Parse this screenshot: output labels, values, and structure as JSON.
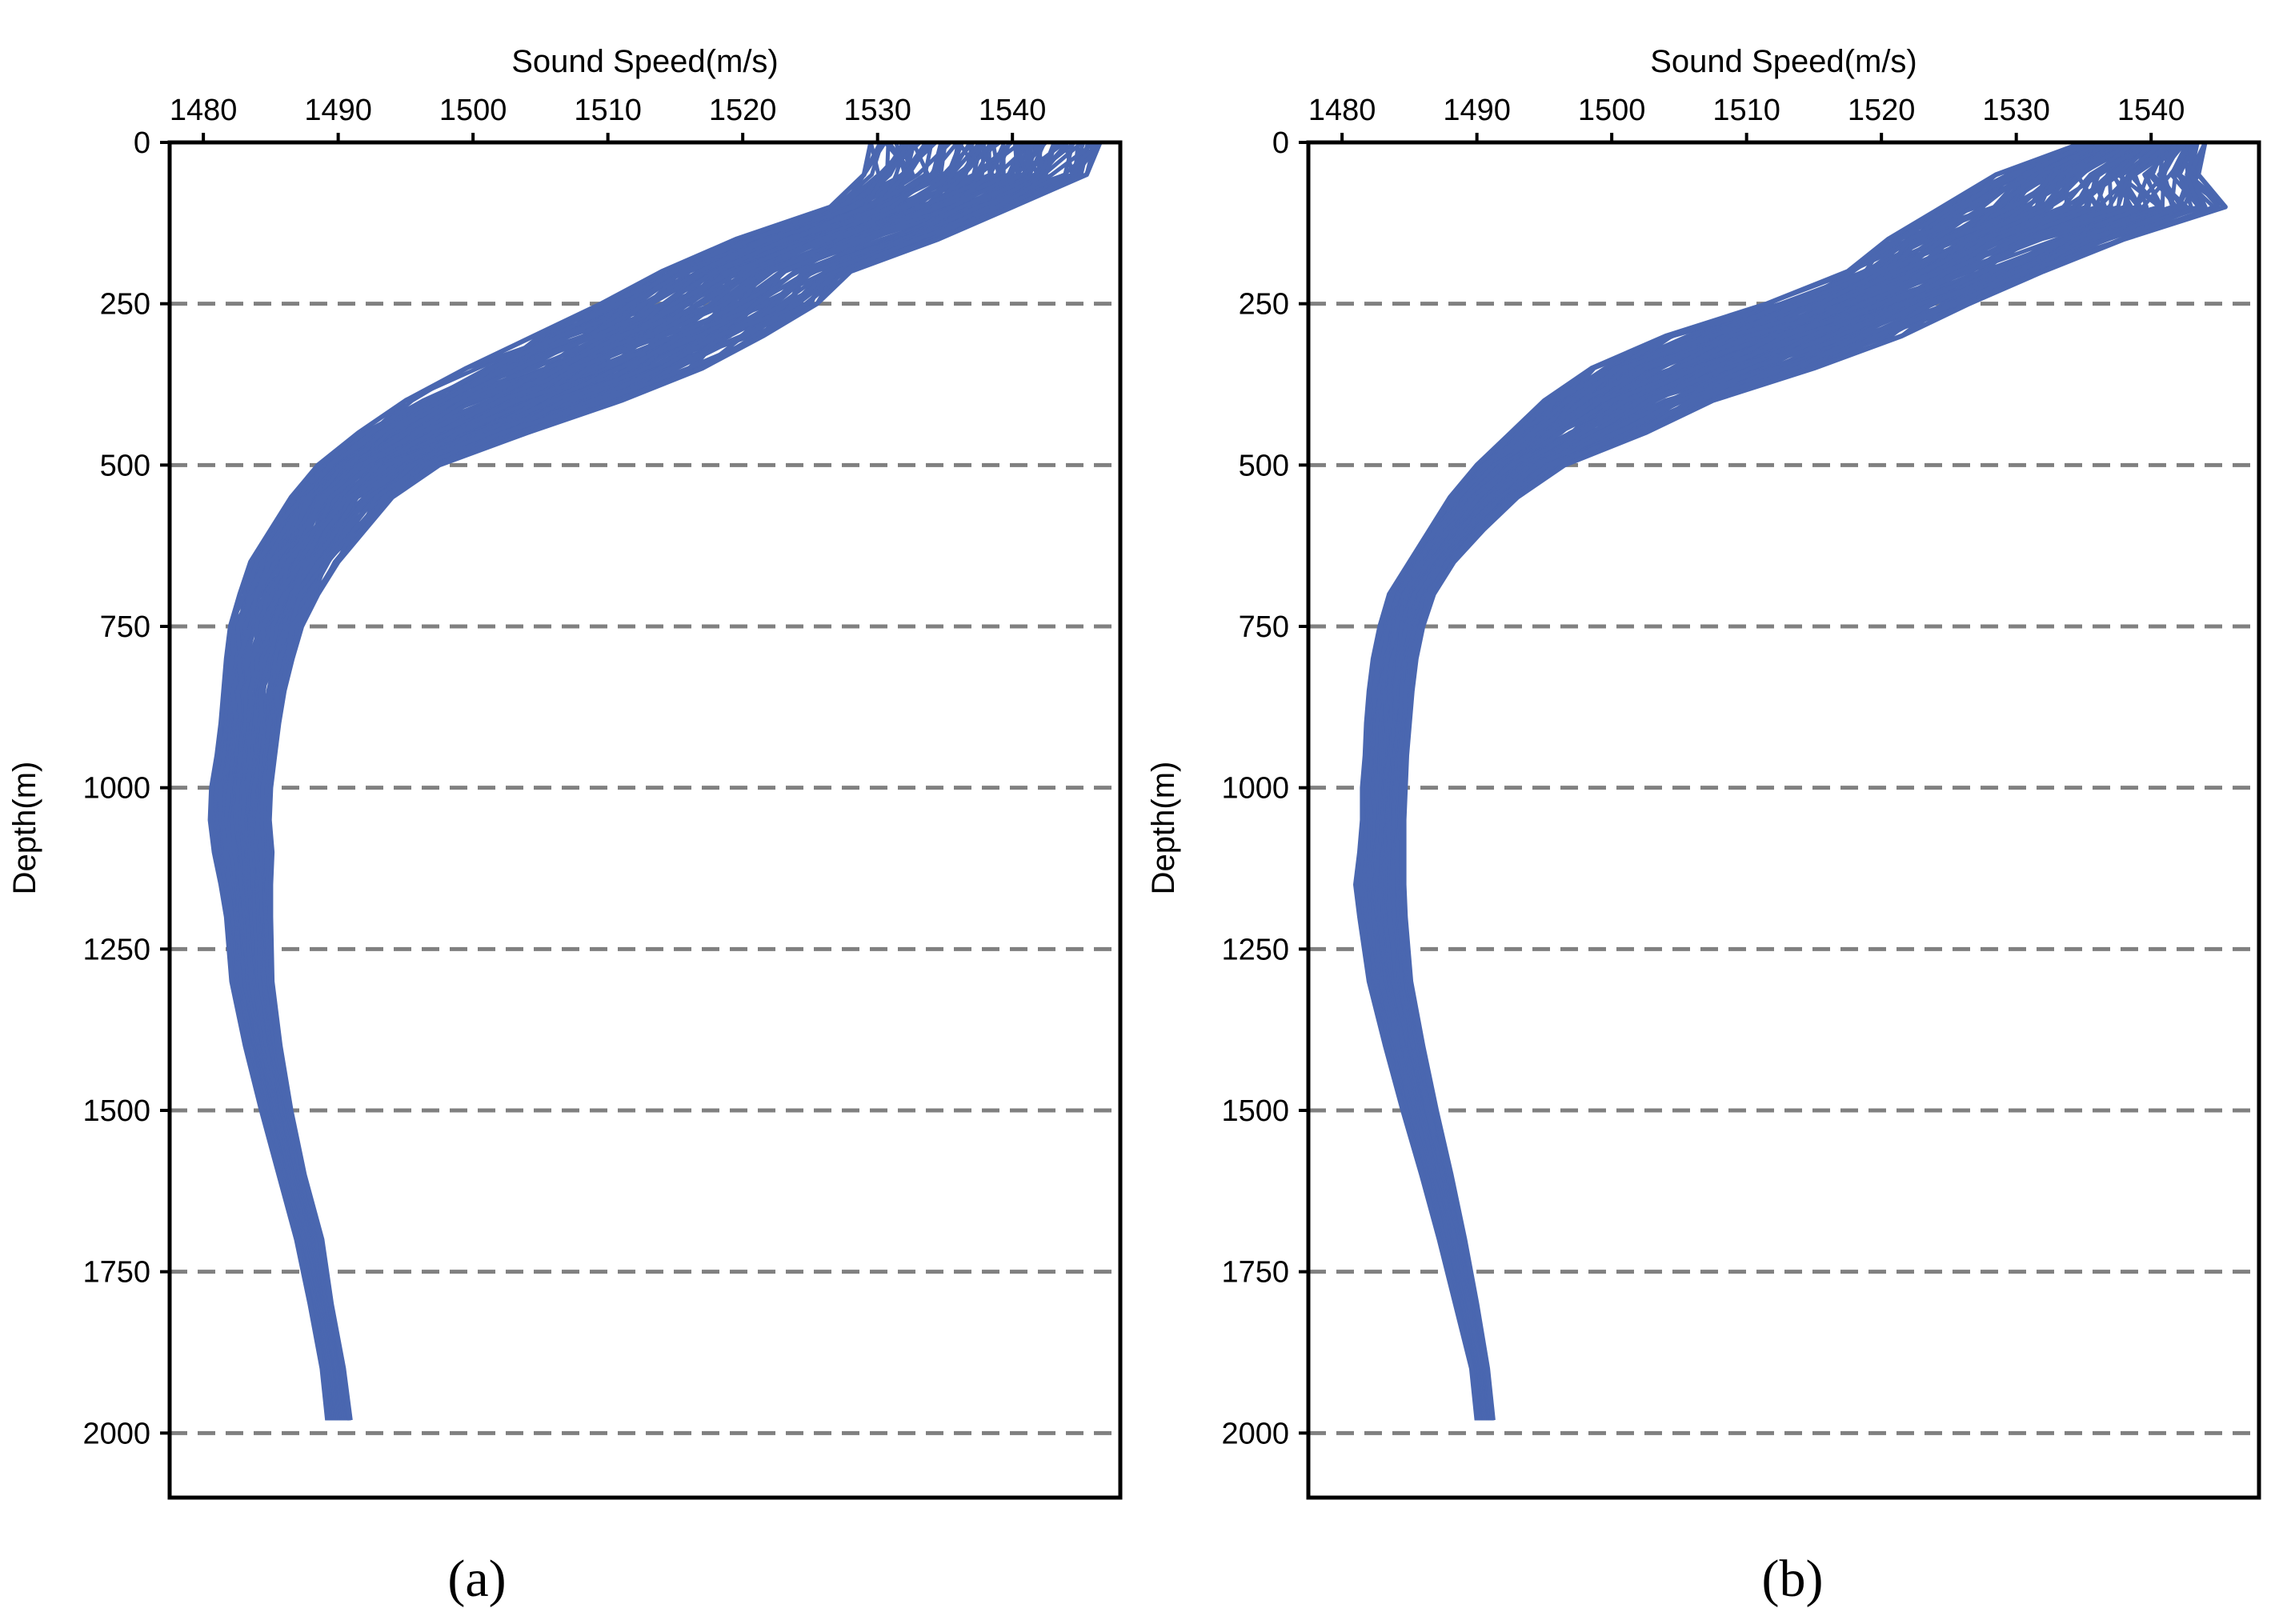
{
  "figure": {
    "panel_labels": [
      "(a)",
      "(b)"
    ]
  },
  "chart_data": [
    {
      "panel": "(a)",
      "type": "line",
      "title": "",
      "xlabel": "Sound Speed(m/s)",
      "ylabel": "Depth(m)",
      "x_axis_position": "top",
      "y_axis_inverted": true,
      "xlim": [
        1477.5,
        1548
      ],
      "ylim": [
        0,
        2100
      ],
      "x_ticks": [
        1480,
        1490,
        1500,
        1510,
        1520,
        1530,
        1540
      ],
      "x_tick_labels": [
        "1480",
        "1490",
        "1500",
        "1510",
        "1520",
        "1530",
        "1540"
      ],
      "y_ticks": [
        0,
        250,
        500,
        750,
        1000,
        1250,
        1500,
        1750,
        2000
      ],
      "y_tick_labels": [
        "0",
        "250",
        "500",
        "750",
        "1000",
        "1250",
        "1500",
        "1750",
        "2000"
      ],
      "gridlines": "horizontal dashed at 250, 500, 750, 1000, 1250, 1500, 1750, 2000",
      "series_color": "#4a67b0",
      "grid_color": "#808080",
      "profile_count_approx": 100,
      "depth": [
        0,
        50,
        100,
        150,
        200,
        250,
        300,
        350,
        400,
        450,
        500,
        550,
        600,
        650,
        700,
        750,
        800,
        850,
        900,
        950,
        1000,
        1050,
        1100,
        1150,
        1200,
        1300,
        1400,
        1500,
        1600,
        1700,
        1800,
        1900,
        1980
      ],
      "speed_lower": [
        1529.5,
        1529.0,
        1526.5,
        1519.5,
        1514.0,
        1509.5,
        1504.5,
        1499.5,
        1495.0,
        1491.5,
        1488.5,
        1486.5,
        1485.0,
        1483.5,
        1482.7,
        1482.0,
        1481.7,
        1481.5,
        1481.3,
        1481.0,
        1480.6,
        1480.5,
        1480.8,
        1481.3,
        1481.7,
        1482.1,
        1483.1,
        1484.3,
        1485.6,
        1486.9,
        1487.9,
        1488.8,
        1489.2
      ],
      "speed_upper": [
        1546.5,
        1545.5,
        1540.0,
        1534.5,
        1528.0,
        1525.5,
        1521.5,
        1517.0,
        1511.0,
        1504.0,
        1497.5,
        1494.0,
        1492.0,
        1490.0,
        1488.5,
        1487.3,
        1486.6,
        1486.0,
        1485.6,
        1485.3,
        1485.0,
        1484.9,
        1485.1,
        1485.0,
        1485.0,
        1485.1,
        1485.7,
        1486.5,
        1487.5,
        1488.8,
        1489.5,
        1490.4,
        1490.9
      ]
    },
    {
      "panel": "(b)",
      "type": "line",
      "title": "",
      "xlabel": "Sound Speed(m/s)",
      "ylabel": "Depth(m)",
      "x_axis_position": "top",
      "y_axis_inverted": true,
      "xlim": [
        1477.5,
        1548
      ],
      "ylim": [
        0,
        2100
      ],
      "x_ticks": [
        1480,
        1490,
        1500,
        1510,
        1520,
        1530,
        1540
      ],
      "x_tick_labels": [
        "1480",
        "1490",
        "1500",
        "1510",
        "1520",
        "1530",
        "1540"
      ],
      "y_ticks": [
        0,
        250,
        500,
        750,
        1000,
        1250,
        1500,
        1750,
        2000
      ],
      "y_tick_labels": [
        "0",
        "250",
        "500",
        "750",
        "1000",
        "1250",
        "1500",
        "1750",
        "2000"
      ],
      "gridlines": "horizontal dashed at 250, 500, 750, 1000, 1250, 1500, 1750, 2000",
      "series_color": "#4a67b0",
      "grid_color": "#808080",
      "profile_count_approx": 100,
      "depth": [
        0,
        50,
        100,
        150,
        200,
        250,
        300,
        350,
        400,
        450,
        500,
        550,
        600,
        650,
        700,
        750,
        800,
        850,
        900,
        950,
        1000,
        1050,
        1100,
        1150,
        1200,
        1300,
        1400,
        1500,
        1600,
        1700,
        1800,
        1900,
        1980
      ],
      "speed_lower": [
        1535.0,
        1528.5,
        1524.5,
        1520.5,
        1517.5,
        1511.5,
        1504.0,
        1498.5,
        1495.0,
        1492.5,
        1490.0,
        1488.0,
        1486.5,
        1485.0,
        1483.5,
        1482.8,
        1482.3,
        1482.0,
        1481.8,
        1481.7,
        1481.5,
        1481.5,
        1481.3,
        1481.0,
        1481.3,
        1482.0,
        1483.2,
        1484.5,
        1485.9,
        1487.2,
        1488.4,
        1489.6,
        1490.0
      ],
      "speed_upper": [
        1544.0,
        1543.5,
        1545.5,
        1538.0,
        1532.0,
        1526.5,
        1521.5,
        1515.0,
        1507.5,
        1502.5,
        1496.5,
        1493.0,
        1490.5,
        1488.3,
        1486.8,
        1486.0,
        1485.5,
        1485.2,
        1485.0,
        1484.8,
        1484.7,
        1484.6,
        1484.6,
        1484.6,
        1484.7,
        1485.1,
        1486.0,
        1487.0,
        1488.1,
        1489.1,
        1490.0,
        1490.8,
        1491.2
      ]
    }
  ]
}
